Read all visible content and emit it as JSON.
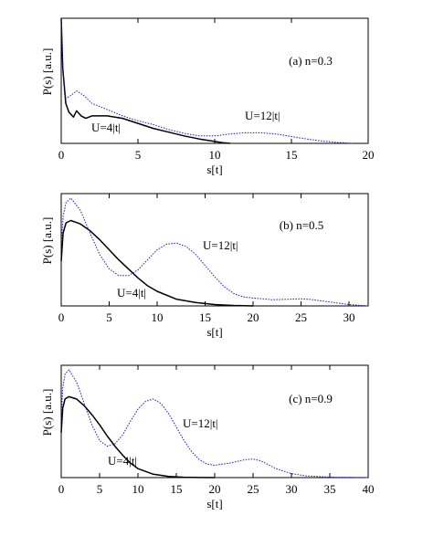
{
  "chart_data": [
    {
      "type": "line",
      "annotation": "(a) n=0.3",
      "xlabel": "s[t]",
      "ylabel": "P(s) [a.u.]",
      "xlim": [
        0,
        20
      ],
      "xticks": [
        0,
        5,
        10,
        15,
        20
      ],
      "ylim": [
        0,
        1
      ],
      "series": [
        {
          "name": "U=4|t|",
          "color": "#000000",
          "style": "solid",
          "x": [
            0,
            0.1,
            0.3,
            0.5,
            0.8,
            1,
            1.3,
            1.6,
            2,
            3,
            4,
            5,
            6,
            7,
            8,
            9,
            10,
            10.5,
            11
          ],
          "values": [
            1.0,
            0.6,
            0.32,
            0.25,
            0.21,
            0.26,
            0.22,
            0.2,
            0.22,
            0.22,
            0.2,
            0.16,
            0.12,
            0.09,
            0.06,
            0.035,
            0.015,
            0.005,
            0
          ]
        },
        {
          "name": "U=12|t|",
          "color": "#1a1acc",
          "style": "dotted",
          "x": [
            0,
            0.1,
            0.3,
            0.6,
            1,
            1.5,
            2,
            3,
            4,
            5,
            6,
            7,
            8,
            9,
            10,
            11,
            12,
            13,
            14,
            15,
            16,
            17,
            18,
            19
          ],
          "values": [
            1.0,
            0.6,
            0.36,
            0.38,
            0.42,
            0.38,
            0.32,
            0.27,
            0.22,
            0.18,
            0.15,
            0.11,
            0.08,
            0.06,
            0.06,
            0.075,
            0.085,
            0.085,
            0.075,
            0.055,
            0.035,
            0.018,
            0.007,
            0
          ]
        }
      ]
    },
    {
      "type": "line",
      "annotation": "(b) n=0.5",
      "xlabel": "s[t]",
      "ylabel": "P(s) [a.u.]",
      "xlim": [
        0,
        32
      ],
      "xticks": [
        0,
        5,
        10,
        15,
        20,
        25,
        30
      ],
      "ylim": [
        0,
        1
      ],
      "series": [
        {
          "name": "U=4|t|",
          "color": "#000000",
          "style": "solid",
          "x": [
            0,
            0.2,
            0.5,
            1,
            2,
            3,
            4,
            5,
            6,
            7,
            8,
            9,
            10,
            12,
            14,
            16,
            18,
            20
          ],
          "values": [
            0.4,
            0.65,
            0.74,
            0.76,
            0.73,
            0.67,
            0.59,
            0.5,
            0.41,
            0.33,
            0.25,
            0.18,
            0.13,
            0.06,
            0.03,
            0.012,
            0.004,
            0
          ]
        },
        {
          "name": "U=12|t|",
          "color": "#1a1acc",
          "style": "dotted",
          "x": [
            0,
            0.2,
            0.5,
            1,
            2,
            3,
            4,
            5,
            6,
            7,
            8,
            9,
            10,
            11,
            12,
            13,
            14,
            15,
            16,
            17,
            18,
            19,
            20,
            22,
            24,
            25,
            26,
            28,
            30,
            32
          ],
          "values": [
            0.5,
            0.8,
            0.92,
            0.96,
            0.85,
            0.65,
            0.46,
            0.33,
            0.27,
            0.27,
            0.32,
            0.41,
            0.5,
            0.55,
            0.56,
            0.53,
            0.46,
            0.36,
            0.26,
            0.17,
            0.11,
            0.08,
            0.07,
            0.055,
            0.06,
            0.063,
            0.058,
            0.035,
            0.012,
            0
          ]
        }
      ]
    },
    {
      "type": "line",
      "annotation": "(c) n=0.9",
      "xlabel": "s[t]",
      "ylabel": "P(s) [a.u.]",
      "xlim": [
        0,
        40
      ],
      "xticks": [
        0,
        5,
        10,
        15,
        20,
        25,
        30,
        35,
        40
      ],
      "ylim": [
        0,
        1
      ],
      "series": [
        {
          "name": "U=4|t|",
          "color": "#000000",
          "style": "solid",
          "x": [
            0,
            0.2,
            0.5,
            1,
            2,
            3,
            4,
            5,
            6,
            7,
            8,
            9,
            10,
            12,
            14,
            16,
            18,
            20
          ],
          "values": [
            0.4,
            0.62,
            0.7,
            0.72,
            0.7,
            0.64,
            0.56,
            0.47,
            0.37,
            0.28,
            0.2,
            0.13,
            0.08,
            0.03,
            0.01,
            0.003,
            0.001,
            0
          ]
        },
        {
          "name": "U=12|t|",
          "color": "#1a1acc",
          "style": "dotted",
          "x": [
            0,
            0.2,
            0.5,
            1,
            2,
            3,
            4,
            5,
            6,
            7,
            8,
            9,
            10,
            11,
            12,
            13,
            14,
            15,
            16,
            17,
            18,
            19,
            20,
            22,
            24,
            25,
            26,
            28,
            30,
            32,
            35,
            40
          ],
          "values": [
            0.5,
            0.8,
            0.92,
            0.96,
            0.85,
            0.66,
            0.47,
            0.33,
            0.28,
            0.3,
            0.38,
            0.5,
            0.61,
            0.68,
            0.7,
            0.66,
            0.57,
            0.45,
            0.33,
            0.23,
            0.16,
            0.12,
            0.11,
            0.13,
            0.16,
            0.165,
            0.15,
            0.08,
            0.035,
            0.015,
            0.004,
            0
          ]
        }
      ]
    }
  ]
}
